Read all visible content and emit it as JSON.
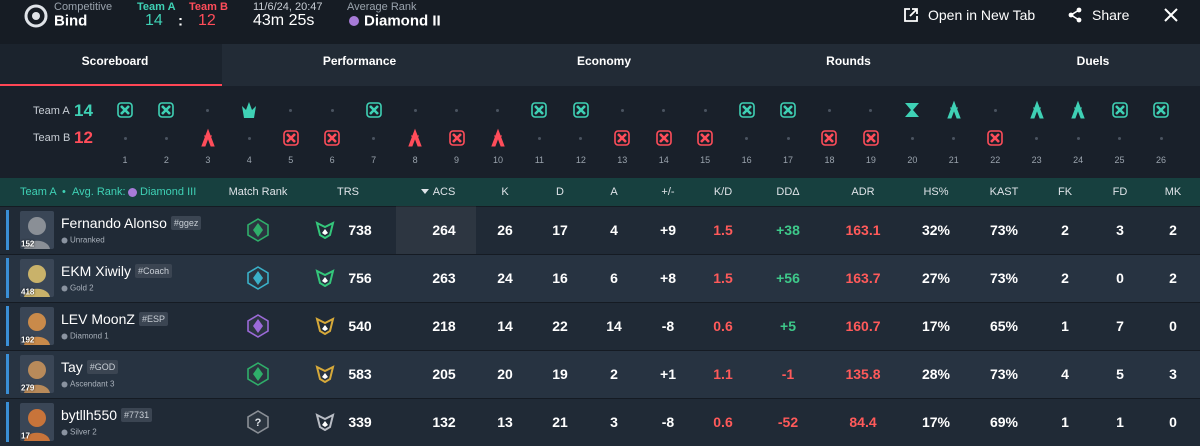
{
  "header": {
    "mode": "Competitive",
    "map": "Bind",
    "team_a_label": "Team A",
    "team_b_label": "Team B",
    "score_a": "14",
    "separator": ":",
    "score_b": "12",
    "date": "11/6/24, 20:47",
    "duration": "43m 25s",
    "avg_rank_label": "Average Rank",
    "avg_rank": "Diamond II",
    "actions": [
      "Open in New Tab",
      "Share"
    ]
  },
  "tabs": {
    "items": [
      "Scoreboard",
      "Performance",
      "Economy",
      "Rounds",
      "Duels"
    ],
    "active": 0
  },
  "rounds": {
    "team_a": {
      "name": "Team A",
      "score": "14",
      "color": "#3fd1b5"
    },
    "team_b": {
      "name": "Team B",
      "score": "12",
      "color": "#ff4d5a"
    },
    "numbers": [
      "1",
      "2",
      "3",
      "4",
      "5",
      "6",
      "7",
      "8",
      "9",
      "10",
      "11",
      "12",
      "13",
      "14",
      "15",
      "16",
      "17",
      "18",
      "19",
      "20",
      "21",
      "22",
      "23",
      "24",
      "25",
      "26"
    ],
    "results": [
      {
        "winner": "a",
        "end": "elimination"
      },
      {
        "winner": "a",
        "end": "elimination"
      },
      {
        "winner": "b",
        "end": "spike"
      },
      {
        "winner": "a",
        "end": "detonate"
      },
      {
        "winner": "b",
        "end": "elimination"
      },
      {
        "winner": "b",
        "end": "elimination"
      },
      {
        "winner": "a",
        "end": "elimination"
      },
      {
        "winner": "b",
        "end": "spike"
      },
      {
        "winner": "b",
        "end": "elimination"
      },
      {
        "winner": "b",
        "end": "spike"
      },
      {
        "winner": "a",
        "end": "elimination"
      },
      {
        "winner": "a",
        "end": "elimination"
      },
      {
        "winner": "b",
        "end": "elimination"
      },
      {
        "winner": "b",
        "end": "elimination"
      },
      {
        "winner": "b",
        "end": "elimination"
      },
      {
        "winner": "a",
        "end": "elimination"
      },
      {
        "winner": "a",
        "end": "elimination"
      },
      {
        "winner": "b",
        "end": "elimination"
      },
      {
        "winner": "b",
        "end": "elimination"
      },
      {
        "winner": "a",
        "end": "time"
      },
      {
        "winner": "a",
        "end": "spike"
      },
      {
        "winner": "b",
        "end": "elimination"
      },
      {
        "winner": "a",
        "end": "spike"
      },
      {
        "winner": "a",
        "end": "spike"
      },
      {
        "winner": "a",
        "end": "elimination"
      },
      {
        "winner": "a",
        "end": "elimination"
      }
    ]
  },
  "scoreboard": {
    "team": "Team A",
    "bullet": "•",
    "avg_rank_label": "Avg. Rank:",
    "avg_rank": "Diamond III",
    "columns": [
      "Match Rank",
      "TRS",
      "ACS",
      "K",
      "D",
      "A",
      "+/-",
      "K/D",
      "DDΔ",
      "ADR",
      "HS%",
      "KAST",
      "FK",
      "FD",
      "MK"
    ],
    "sorted_column": 2,
    "players": [
      {
        "name": "Fernando Alonso",
        "tag": "#ggez",
        "rank": "Unranked",
        "level": "152",
        "match_rank": {
          "color": "#2fae6a"
        },
        "trs_color": "#34c77b",
        "avatar": "#8a8f96",
        "cells": [
          "738",
          "264",
          "26",
          "17",
          "4",
          "+9",
          "1.5",
          "+38",
          "163.1",
          "32%",
          "73%",
          "2",
          "3",
          "2"
        ]
      },
      {
        "name": "EKM Xiwily",
        "tag": "#Coach",
        "rank": "Gold 2",
        "level": "418",
        "match_rank": {
          "color": "#3ab0c8"
        },
        "trs_color": "#34c77b",
        "avatar": "#c9b26a",
        "cells": [
          "756",
          "263",
          "24",
          "16",
          "6",
          "+8",
          "1.5",
          "+56",
          "163.7",
          "27%",
          "73%",
          "2",
          "0",
          "2"
        ]
      },
      {
        "name": "LEV MoonZ",
        "tag": "#ESP",
        "rank": "Diamond 1",
        "level": "192",
        "match_rank": {
          "color": "#9b6ad8"
        },
        "trs_color": "#d6a93a",
        "avatar": "#c98a4a",
        "cells": [
          "540",
          "218",
          "14",
          "22",
          "14",
          "-8",
          "0.6",
          "+5",
          "160.7",
          "17%",
          "65%",
          "1",
          "7",
          "0"
        ]
      },
      {
        "name": "Tay",
        "tag": "#GOD",
        "rank": "Ascendant 3",
        "level": "279",
        "match_rank": {
          "color": "#2fae6a"
        },
        "trs_color": "#d6a93a",
        "avatar": "#b88a5a",
        "cells": [
          "583",
          "205",
          "20",
          "19",
          "2",
          "+1",
          "1.1",
          "-1",
          "135.8",
          "28%",
          "73%",
          "4",
          "5",
          "3"
        ]
      },
      {
        "name": "bytllh550",
        "tag": "#7731",
        "rank": "Silver 2",
        "level": "17",
        "match_rank": {
          "color": "#8a8f96",
          "label": "?"
        },
        "trs_color": "#b8bcc4",
        "avatar": "#c8743a",
        "cells": [
          "339",
          "132",
          "13",
          "21",
          "3",
          "-8",
          "0.6",
          "-52",
          "84.4",
          "17%",
          "69%",
          "1",
          "1",
          "0"
        ]
      }
    ]
  }
}
